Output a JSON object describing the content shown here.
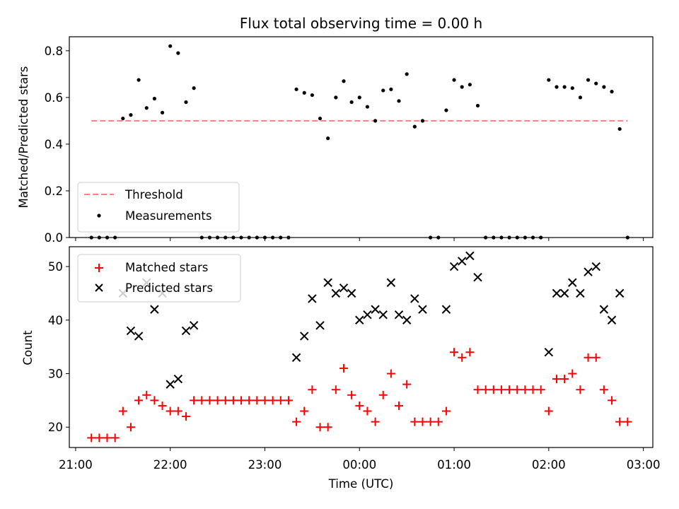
{
  "chart_data": [
    {
      "type": "scatter",
      "title": "Flux total observing time = 0.00 h",
      "xlabel": "",
      "ylabel": "Matched/Predicted stars",
      "ylim": [
        0,
        0.86
      ],
      "yticks": [
        "0.0",
        "0.2",
        "0.4",
        "0.6",
        "0.8"
      ],
      "ytick_values": [
        0.0,
        0.2,
        0.4,
        0.6,
        0.8
      ],
      "legend": {
        "position": "lower-left",
        "entries": [
          "Threshold",
          "Measurements"
        ]
      },
      "threshold": {
        "name": "Threshold",
        "value": 0.5,
        "x_range": [
          "21:10",
          "02:50"
        ],
        "color": "#ff7f7f"
      },
      "series": [
        {
          "name": "Measurements",
          "color": "#000000",
          "points": [
            [
              "21:10",
              0.0
            ],
            [
              "21:15",
              0.0
            ],
            [
              "21:20",
              0.0
            ],
            [
              "21:25",
              0.0
            ],
            [
              "21:30",
              0.51
            ],
            [
              "21:35",
              0.525
            ],
            [
              "21:40",
              0.675
            ],
            [
              "21:45",
              0.555
            ],
            [
              "21:50",
              0.595
            ],
            [
              "21:55",
              0.535
            ],
            [
              "22:00",
              0.82
            ],
            [
              "22:05",
              0.79
            ],
            [
              "22:10",
              0.58
            ],
            [
              "22:15",
              0.64
            ],
            [
              "22:20",
              0.0
            ],
            [
              "22:25",
              0.0
            ],
            [
              "22:30",
              0.0
            ],
            [
              "22:35",
              0.0
            ],
            [
              "22:40",
              0.0
            ],
            [
              "22:45",
              0.0
            ],
            [
              "22:50",
              0.0
            ],
            [
              "22:55",
              0.0
            ],
            [
              "23:00",
              0.0
            ],
            [
              "23:05",
              0.0
            ],
            [
              "23:10",
              0.0
            ],
            [
              "23:15",
              0.0
            ],
            [
              "23:20",
              0.635
            ],
            [
              "23:25",
              0.62
            ],
            [
              "23:30",
              0.61
            ],
            [
              "23:35",
              0.51
            ],
            [
              "23:40",
              0.425
            ],
            [
              "23:45",
              0.6
            ],
            [
              "23:50",
              0.67
            ],
            [
              "23:55",
              0.58
            ],
            [
              "00:00",
              0.6
            ],
            [
              "00:05",
              0.56
            ],
            [
              "00:10",
              0.5
            ],
            [
              "00:15",
              0.63
            ],
            [
              "00:20",
              0.635
            ],
            [
              "00:25",
              0.585
            ],
            [
              "00:30",
              0.7
            ],
            [
              "00:35",
              0.475
            ],
            [
              "00:40",
              0.5
            ],
            [
              "00:45",
              0.0
            ],
            [
              "00:50",
              0.0
            ],
            [
              "00:55",
              0.545
            ],
            [
              "01:00",
              0.675
            ],
            [
              "01:05",
              0.645
            ],
            [
              "01:10",
              0.655
            ],
            [
              "01:15",
              0.565
            ],
            [
              "01:20",
              0.0
            ],
            [
              "01:25",
              0.0
            ],
            [
              "01:30",
              0.0
            ],
            [
              "01:35",
              0.0
            ],
            [
              "01:40",
              0.0
            ],
            [
              "01:45",
              0.0
            ],
            [
              "01:50",
              0.0
            ],
            [
              "01:55",
              0.0
            ],
            [
              "02:00",
              0.675
            ],
            [
              "02:05",
              0.645
            ],
            [
              "02:10",
              0.645
            ],
            [
              "02:15",
              0.64
            ],
            [
              "02:20",
              0.6
            ],
            [
              "02:25",
              0.675
            ],
            [
              "02:30",
              0.66
            ],
            [
              "02:35",
              0.645
            ],
            [
              "02:40",
              0.625
            ],
            [
              "02:45",
              0.465
            ],
            [
              "02:50",
              0.0
            ]
          ]
        }
      ]
    },
    {
      "type": "scatter",
      "title": "",
      "xlabel": "Time (UTC)",
      "ylabel": "Count",
      "ylim": [
        16.2,
        53.7
      ],
      "yticks": [
        "20",
        "30",
        "40",
        "50"
      ],
      "ytick_values": [
        20,
        30,
        40,
        50
      ],
      "xticks": [
        "21:00",
        "22:00",
        "23:00",
        "00:00",
        "01:00",
        "02:00",
        "03:00"
      ],
      "xlim": [
        "20:56",
        "03:06"
      ],
      "legend": {
        "position": "top-left",
        "entries": [
          "Matched stars",
          "Predicted stars"
        ]
      },
      "series": [
        {
          "name": "Matched stars",
          "color": "#ff0000",
          "marker": "plus",
          "points": [
            [
              "21:10",
              18
            ],
            [
              "21:15",
              18
            ],
            [
              "21:20",
              18
            ],
            [
              "21:25",
              18
            ],
            [
              "21:30",
              23
            ],
            [
              "21:35",
              20
            ],
            [
              "21:40",
              25
            ],
            [
              "21:45",
              26
            ],
            [
              "21:50",
              25
            ],
            [
              "21:55",
              24
            ],
            [
              "22:00",
              23
            ],
            [
              "22:05",
              23
            ],
            [
              "22:10",
              22
            ],
            [
              "22:15",
              25
            ],
            [
              "22:20",
              25
            ],
            [
              "22:25",
              25
            ],
            [
              "22:30",
              25
            ],
            [
              "22:35",
              25
            ],
            [
              "22:40",
              25
            ],
            [
              "22:45",
              25
            ],
            [
              "22:50",
              25
            ],
            [
              "22:55",
              25
            ],
            [
              "23:00",
              25
            ],
            [
              "23:05",
              25
            ],
            [
              "23:10",
              25
            ],
            [
              "23:15",
              25
            ],
            [
              "23:20",
              21
            ],
            [
              "23:25",
              23
            ],
            [
              "23:30",
              27
            ],
            [
              "23:35",
              20
            ],
            [
              "23:40",
              20
            ],
            [
              "23:45",
              27
            ],
            [
              "23:50",
              31
            ],
            [
              "23:55",
              26
            ],
            [
              "00:00",
              24
            ],
            [
              "00:05",
              23
            ],
            [
              "00:10",
              21
            ],
            [
              "00:15",
              26
            ],
            [
              "00:20",
              30
            ],
            [
              "00:25",
              24
            ],
            [
              "00:30",
              28
            ],
            [
              "00:35",
              21
            ],
            [
              "00:40",
              21
            ],
            [
              "00:45",
              21
            ],
            [
              "00:50",
              21
            ],
            [
              "00:55",
              23
            ],
            [
              "01:00",
              34
            ],
            [
              "01:05",
              33
            ],
            [
              "01:10",
              34
            ],
            [
              "01:15",
              27
            ],
            [
              "01:20",
              27
            ],
            [
              "01:25",
              27
            ],
            [
              "01:30",
              27
            ],
            [
              "01:35",
              27
            ],
            [
              "01:40",
              27
            ],
            [
              "01:45",
              27
            ],
            [
              "01:50",
              27
            ],
            [
              "01:55",
              27
            ],
            [
              "02:00",
              23
            ],
            [
              "02:05",
              29
            ],
            [
              "02:10",
              29
            ],
            [
              "02:15",
              30
            ],
            [
              "02:20",
              27
            ],
            [
              "02:25",
              33
            ],
            [
              "02:30",
              33
            ],
            [
              "02:35",
              27
            ],
            [
              "02:40",
              25
            ],
            [
              "02:45",
              21
            ],
            [
              "02:50",
              21
            ]
          ]
        },
        {
          "name": "Predicted stars",
          "color": "#000000",
          "marker": "x",
          "points": [
            [
              "21:30",
              45
            ],
            [
              "21:35",
              38
            ],
            [
              "21:40",
              37
            ],
            [
              "21:45",
              47
            ],
            [
              "21:50",
              42
            ],
            [
              "21:55",
              45
            ],
            [
              "22:00",
              28
            ],
            [
              "22:05",
              29
            ],
            [
              "22:10",
              38
            ],
            [
              "22:15",
              39
            ],
            [
              "23:20",
              33
            ],
            [
              "23:25",
              37
            ],
            [
              "23:30",
              44
            ],
            [
              "23:35",
              39
            ],
            [
              "23:40",
              47
            ],
            [
              "23:45",
              45
            ],
            [
              "23:50",
              46
            ],
            [
              "23:55",
              45
            ],
            [
              "00:00",
              40
            ],
            [
              "00:05",
              41
            ],
            [
              "00:10",
              42
            ],
            [
              "00:15",
              41
            ],
            [
              "00:20",
              47
            ],
            [
              "00:25",
              41
            ],
            [
              "00:30",
              40
            ],
            [
              "00:35",
              44
            ],
            [
              "00:40",
              42
            ],
            [
              "00:55",
              42
            ],
            [
              "01:00",
              50
            ],
            [
              "01:05",
              51
            ],
            [
              "01:10",
              52
            ],
            [
              "01:15",
              48
            ],
            [
              "02:00",
              34
            ],
            [
              "02:05",
              45
            ],
            [
              "02:10",
              45
            ],
            [
              "02:15",
              47
            ],
            [
              "02:20",
              45
            ],
            [
              "02:25",
              49
            ],
            [
              "02:30",
              50
            ],
            [
              "02:35",
              42
            ],
            [
              "02:40",
              40
            ],
            [
              "02:45",
              45
            ]
          ]
        }
      ]
    }
  ]
}
